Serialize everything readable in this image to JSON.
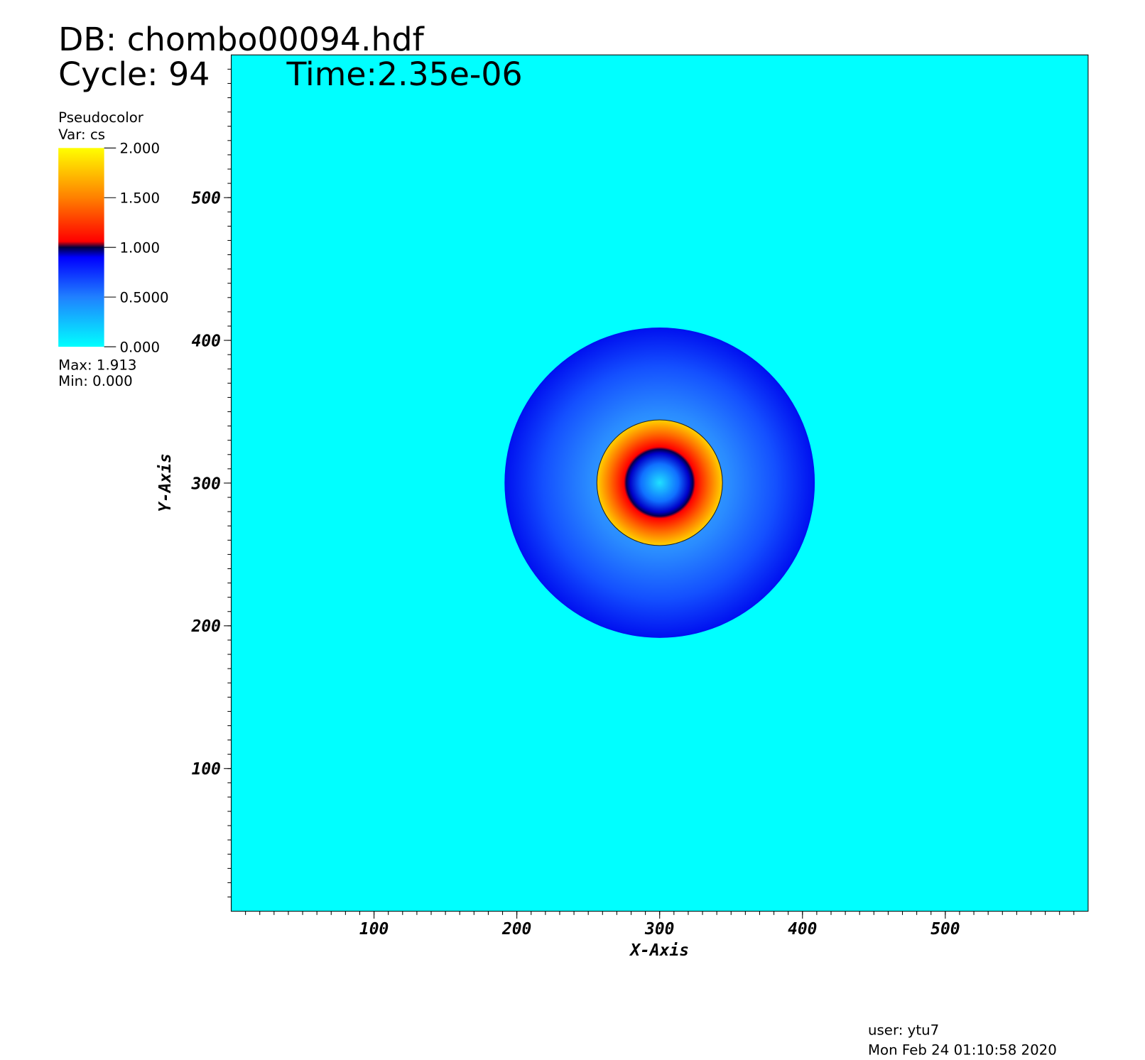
{
  "chart_data": {
    "type": "pseudocolor",
    "title": "DB: chombo00094.hdf",
    "cycle": "Cycle: 94",
    "time": "Time:2.35e-06",
    "legend_title": "Pseudocolor",
    "variable": "Var: cs",
    "max": "Max:  1.913",
    "min": "Min:  0.000",
    "user": "user: ytu7",
    "date": "Mon Feb 24 01:10:58 2020",
    "xlabel": "X-Axis",
    "ylabel": "Y-Axis",
    "xlim": [
      0,
      600
    ],
    "ylim": [
      0,
      600
    ],
    "xticks": [
      100,
      200,
      300,
      400,
      500
    ],
    "yticks": [
      100,
      200,
      300,
      400,
      500
    ],
    "colorbar_lim": [
      0,
      2
    ],
    "colorbar_ticks": [
      {
        "value": 0,
        "label": "0.000"
      },
      {
        "value": 0.5,
        "label": "0.5000"
      },
      {
        "value": 1,
        "label": "1.000"
      },
      {
        "value": 1.5,
        "label": "1.500"
      },
      {
        "value": 2,
        "label": "2.000"
      }
    ]
  }
}
